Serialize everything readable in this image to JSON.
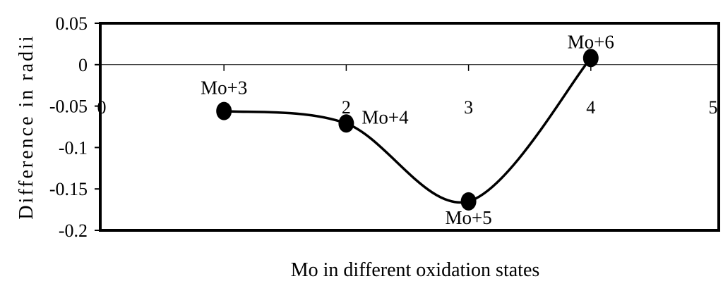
{
  "chart_data": {
    "type": "line",
    "title": "",
    "xlabel": "Mo in different oxidation states",
    "ylabel": "Difference in radii",
    "xlim": [
      0,
      5
    ],
    "ylim": [
      -0.2,
      0.05
    ],
    "x_ticks": [
      "0",
      "2",
      "3",
      "4",
      "5"
    ],
    "y_ticks": [
      "0.05",
      "0",
      "-0.05",
      "-0.1",
      "-0.15",
      "-0.2"
    ],
    "grid": false,
    "smooth": true,
    "series": [
      {
        "points": [
          {
            "x": 1,
            "y": -0.056,
            "label": "Mo+3"
          },
          {
            "x": 2,
            "y": -0.071,
            "label": "Mo+4"
          },
          {
            "x": 3,
            "y": -0.165,
            "label": "Mo+5"
          },
          {
            "x": 4,
            "y": 0.008,
            "label": "Mo+6"
          }
        ]
      }
    ],
    "colors": {
      "line": "#000000",
      "marker": "#000000"
    }
  }
}
